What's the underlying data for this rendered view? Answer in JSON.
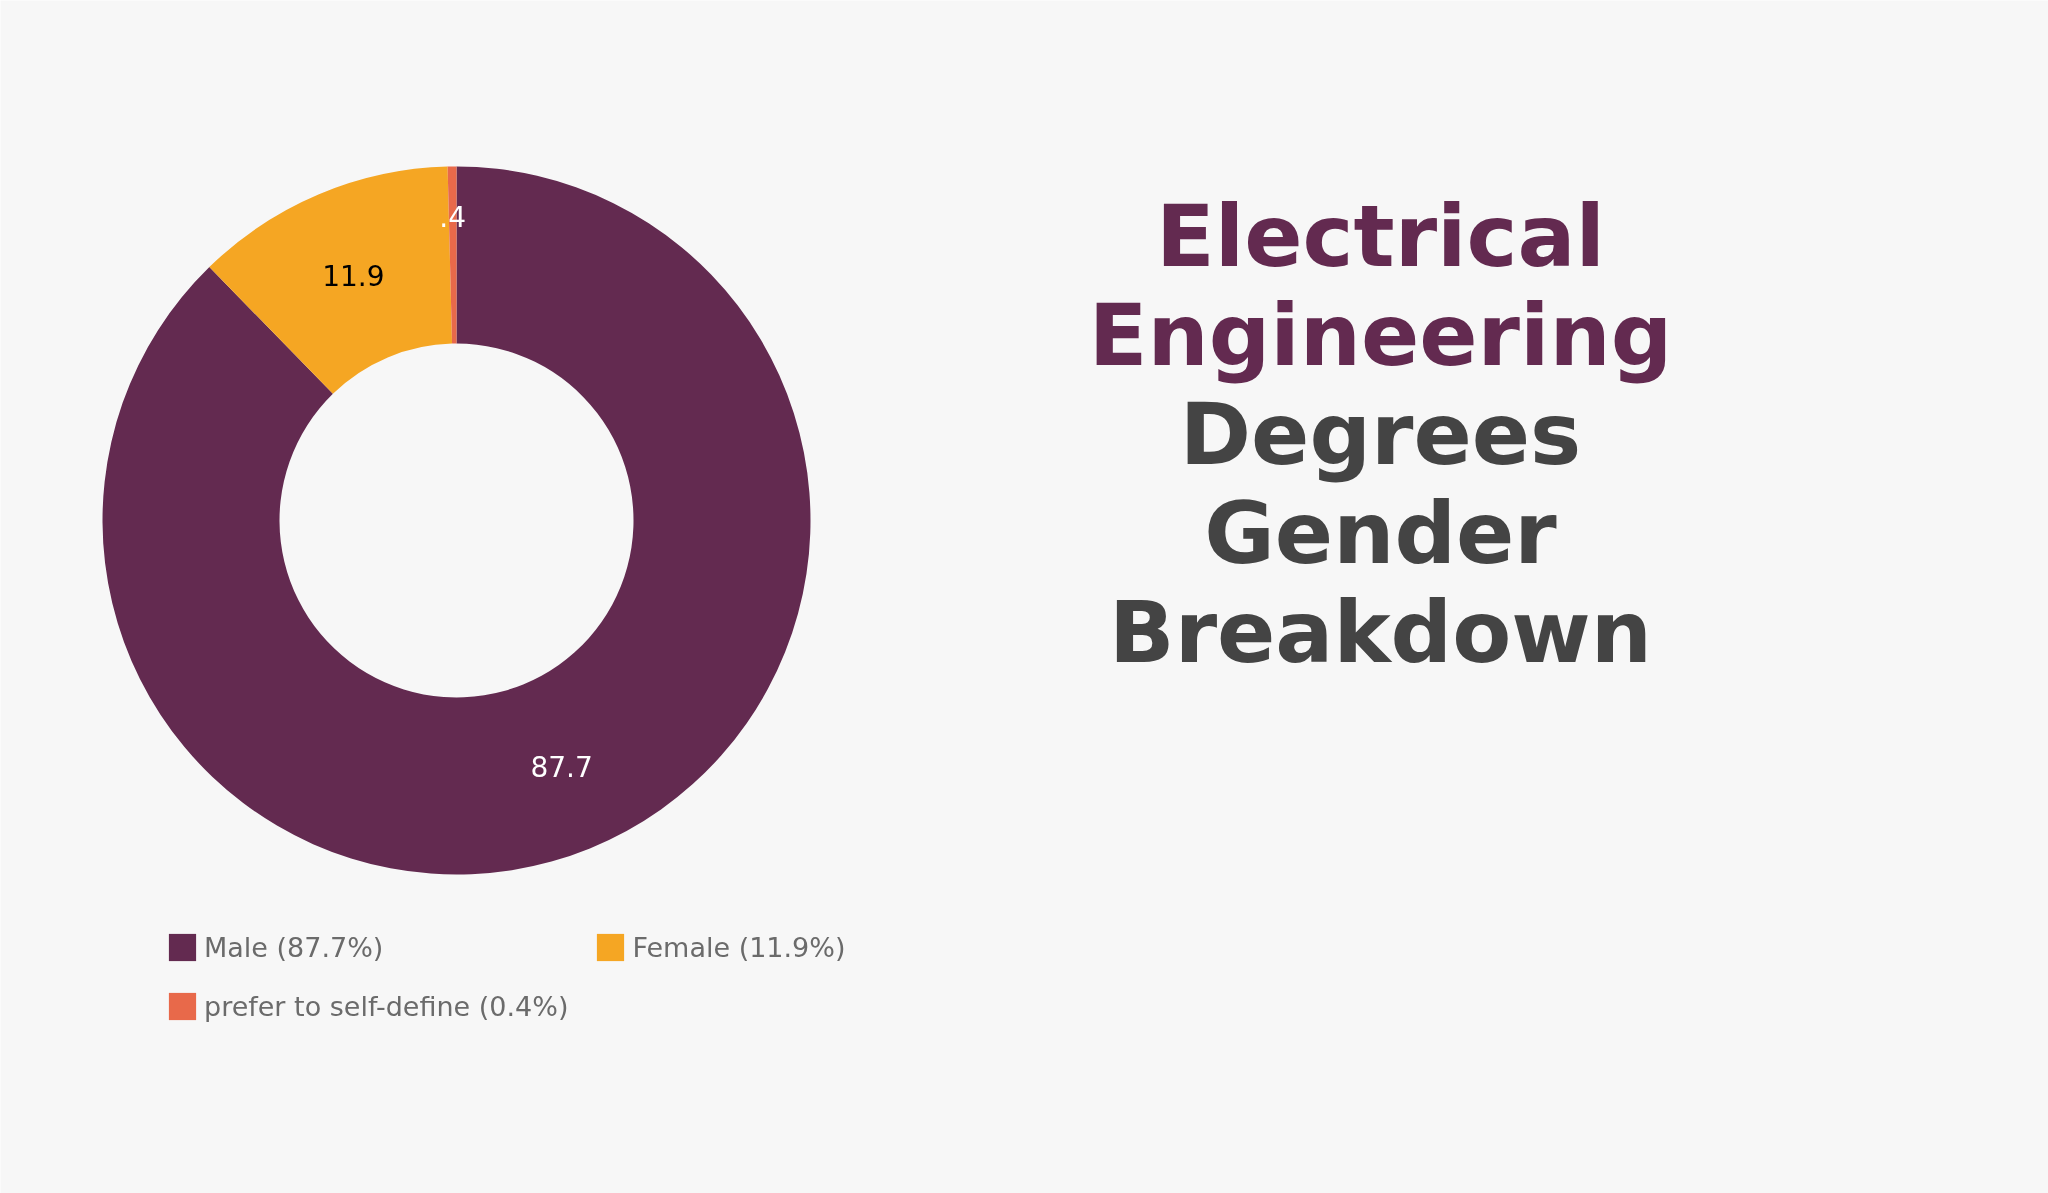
{
  "chart_data": {
    "type": "donut",
    "title": "Electrical Engineering",
    "subtitle": "Degrees Gender Breakdown",
    "categories": [
      "Male (87.7%)",
      "Female (11.9%)",
      "prefer to self-define (0.4%)"
    ],
    "values": [
      87.7,
      11.9,
      0.4
    ],
    "colors": [
      "#632a50",
      "#f5a623",
      "#e8694a"
    ],
    "value_labels": [
      "87.7",
      "11.9",
      ".4"
    ],
    "legend": "bottom"
  }
}
